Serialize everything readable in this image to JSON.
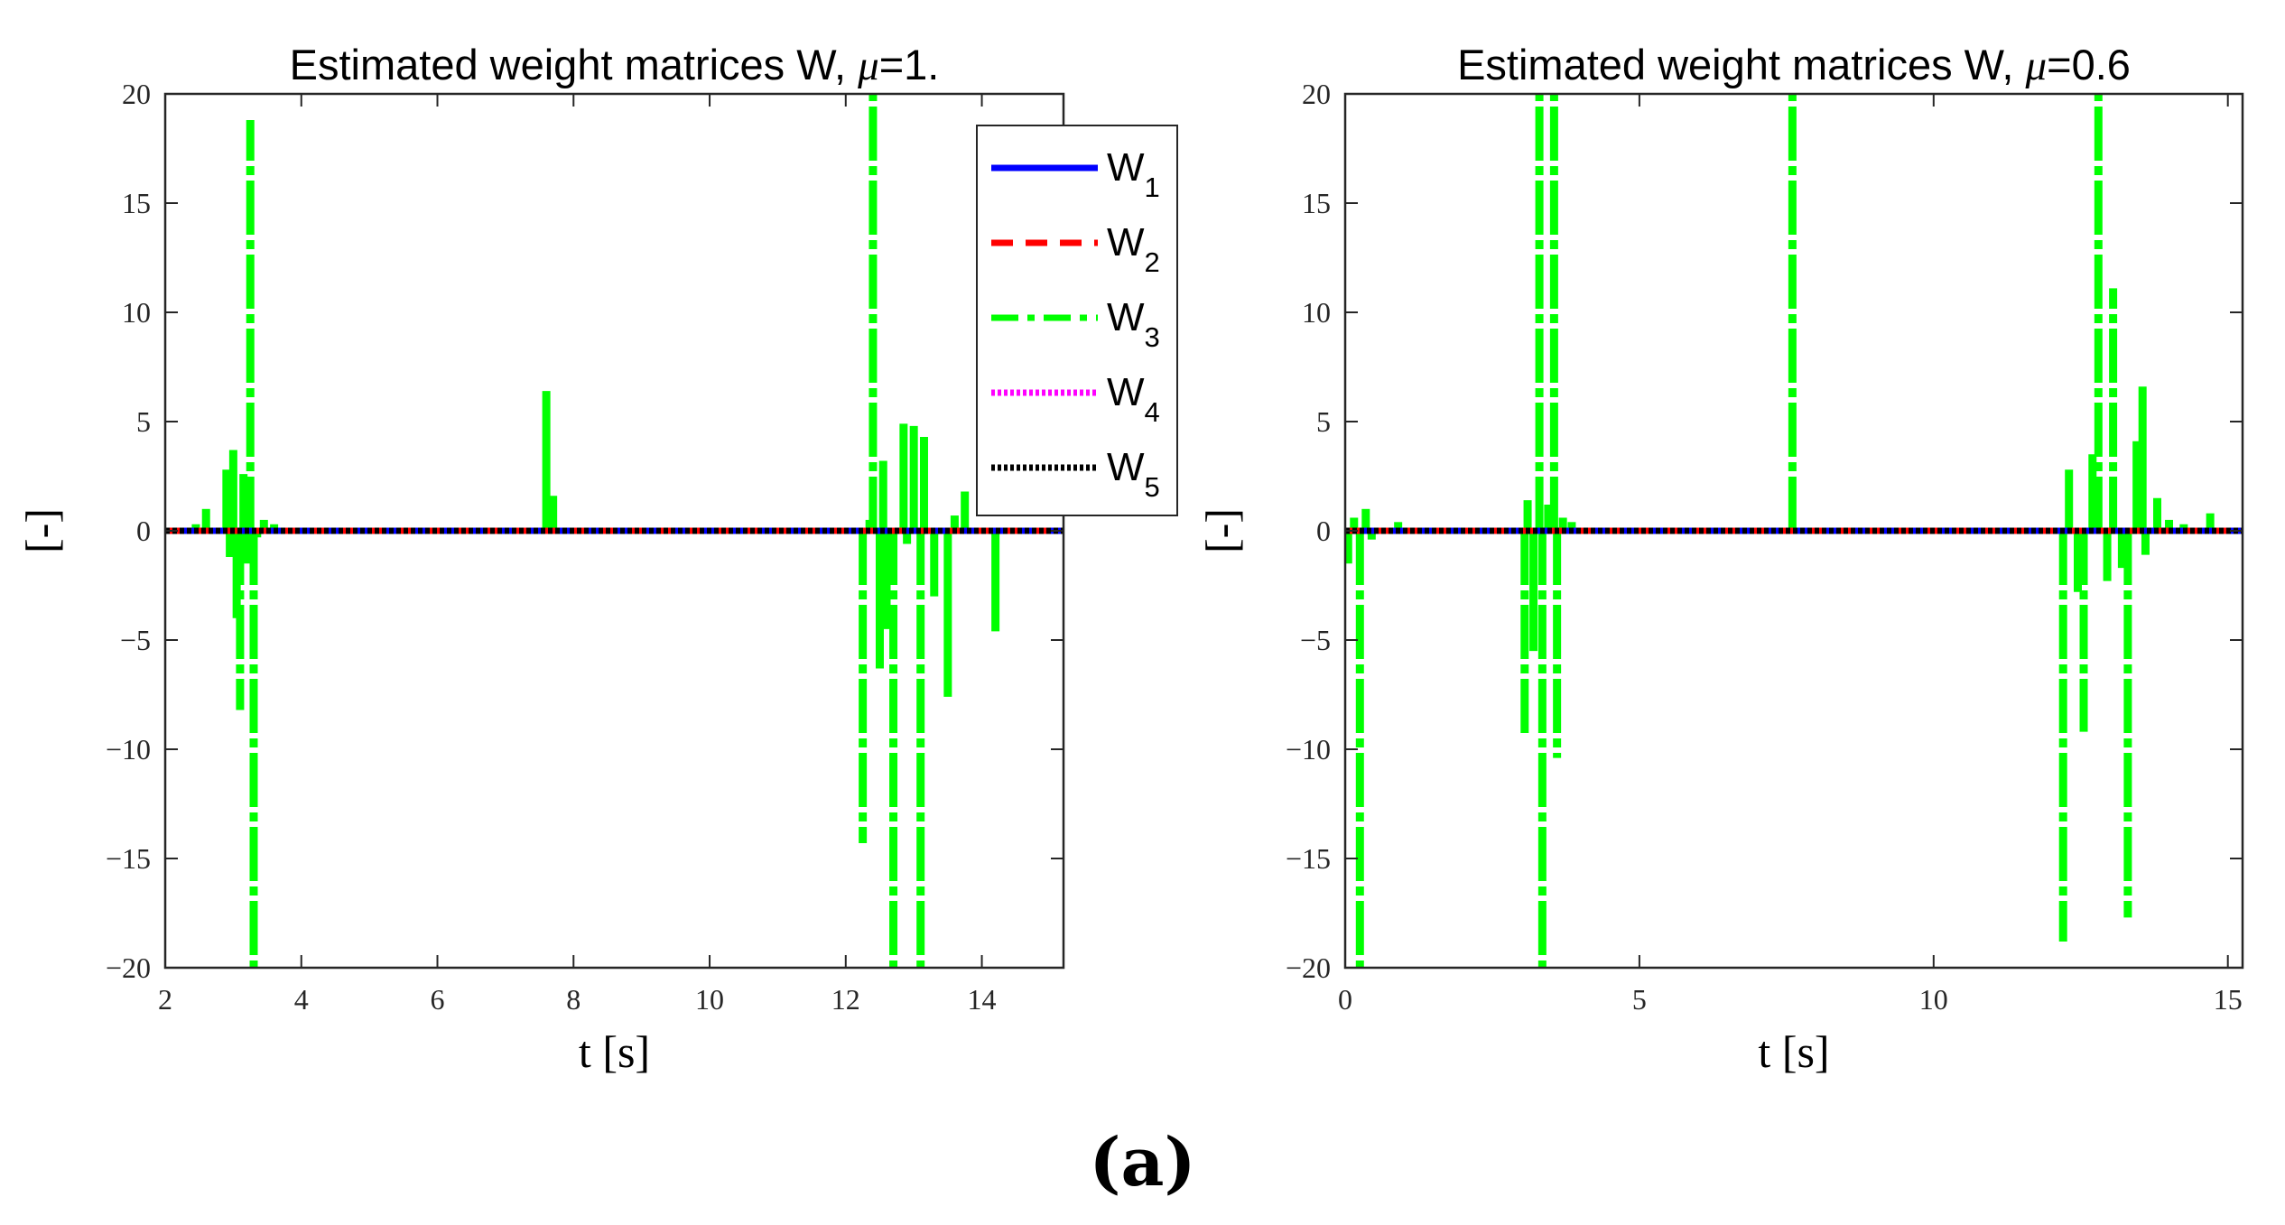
{
  "caption": "(a)",
  "colors": {
    "W1": "#0000ff",
    "W2": "#ff0000",
    "W3": "#00ff00",
    "W4": "#ff00ff",
    "W5": "#000000"
  },
  "chart_data": [
    {
      "type": "line",
      "title_prefix": "Estimated weight matrices W, ",
      "title_mu": "μ",
      "title_suffix": "=1.",
      "xlabel": "t [s]",
      "ylabel": "[-]",
      "xlim": [
        2,
        15.2
      ],
      "ylim": [
        -20,
        20
      ],
      "xticks": [
        2,
        4,
        6,
        8,
        10,
        12,
        14
      ],
      "xtick_labels": [
        "2",
        "4",
        "6",
        "8",
        "10",
        "12",
        "14"
      ],
      "yticks": [
        -20,
        -15,
        -10,
        -5,
        0,
        5,
        10,
        15,
        20
      ],
      "ytick_labels": [
        "−20",
        "−15",
        "−10",
        "−5",
        "0",
        "5",
        "10",
        "15",
        "20"
      ],
      "legend": {
        "placement": "top-right",
        "entries": [
          {
            "name": "W",
            "sub": "1",
            "style": "solid",
            "color_key": "W1"
          },
          {
            "name": "W",
            "sub": "2",
            "style": "dashed",
            "color_key": "W2"
          },
          {
            "name": "W",
            "sub": "3",
            "style": "dashdot",
            "color_key": "W3"
          },
          {
            "name": "W",
            "sub": "4",
            "style": "dotted",
            "color_key": "W4"
          },
          {
            "name": "W",
            "sub": "5",
            "style": "dotted",
            "color_key": "W5"
          }
        ]
      },
      "series": [
        {
          "name": "W3",
          "style": "dashdot",
          "spikes": [
            [
              2.45,
              0.3
            ],
            [
              2.6,
              1.0
            ],
            [
              2.9,
              2.8
            ],
            [
              2.95,
              -1.2
            ],
            [
              3.0,
              3.7
            ],
            [
              3.05,
              -4.0
            ],
            [
              3.1,
              -8.2
            ],
            [
              3.15,
              2.6
            ],
            [
              3.2,
              -1.5
            ],
            [
              3.25,
              18.8
            ],
            [
              3.3,
              -20.0
            ],
            [
              3.35,
              -0.3
            ],
            [
              3.45,
              0.5
            ],
            [
              3.6,
              0.3
            ],
            [
              7.6,
              6.4
            ],
            [
              7.7,
              1.6
            ],
            [
              12.25,
              -14.3
            ],
            [
              12.35,
              0.5
            ],
            [
              12.4,
              20.0
            ],
            [
              12.5,
              -6.3
            ],
            [
              12.55,
              3.2
            ],
            [
              12.6,
              -4.5
            ],
            [
              12.7,
              -20.0
            ],
            [
              12.85,
              4.9
            ],
            [
              12.9,
              -0.6
            ],
            [
              13.0,
              4.8
            ],
            [
              13.1,
              -20.0
            ],
            [
              13.15,
              4.3
            ],
            [
              13.3,
              -3.0
            ],
            [
              13.5,
              -7.6
            ],
            [
              13.6,
              0.7
            ],
            [
              13.75,
              1.8
            ],
            [
              14.2,
              -4.6
            ]
          ]
        },
        {
          "name": "W1",
          "style": "solid",
          "spikes": [
            [
              0,
              0
            ]
          ]
        },
        {
          "name": "W2",
          "style": "dashed",
          "spikes": [
            [
              0,
              0
            ]
          ]
        },
        {
          "name": "W4",
          "style": "dotted",
          "spikes": [
            [
              0,
              0
            ]
          ]
        },
        {
          "name": "W5",
          "style": "dotted",
          "spikes": [
            [
              0,
              0
            ]
          ]
        }
      ]
    },
    {
      "type": "line",
      "title_prefix": "Estimated weight matrices W, ",
      "title_mu": "μ",
      "title_suffix": "=0.6",
      "xlabel": "t [s]",
      "ylabel": "[-]",
      "xlim": [
        0,
        15.25
      ],
      "ylim": [
        -20,
        20
      ],
      "xticks": [
        0,
        5,
        10,
        15
      ],
      "xtick_labels": [
        "0",
        "5",
        "10",
        "15"
      ],
      "yticks": [
        -20,
        -15,
        -10,
        -5,
        0,
        5,
        10,
        15,
        20
      ],
      "ytick_labels": [
        "−20",
        "−15",
        "−10",
        "−5",
        "0",
        "5",
        "10",
        "15",
        "20"
      ],
      "legend": null,
      "series": [
        {
          "name": "W3",
          "style": "dashdot",
          "spikes": [
            [
              0.05,
              -1.5
            ],
            [
              0.15,
              0.6
            ],
            [
              0.25,
              -20.0
            ],
            [
              0.35,
              1.0
            ],
            [
              0.45,
              -0.4
            ],
            [
              0.9,
              0.4
            ],
            [
              3.05,
              -9.4
            ],
            [
              3.1,
              1.4
            ],
            [
              3.2,
              -5.5
            ],
            [
              3.3,
              20.0
            ],
            [
              3.35,
              -20.0
            ],
            [
              3.45,
              1.2
            ],
            [
              3.55,
              20.0
            ],
            [
              3.6,
              -10.4
            ],
            [
              3.7,
              0.6
            ],
            [
              3.85,
              0.4
            ],
            [
              7.6,
              20.0
            ],
            [
              12.2,
              -18.8
            ],
            [
              12.3,
              2.8
            ],
            [
              12.45,
              -2.8
            ],
            [
              12.55,
              -9.2
            ],
            [
              12.7,
              3.5
            ],
            [
              12.8,
              20.0
            ],
            [
              12.95,
              -2.3
            ],
            [
              13.05,
              11.1
            ],
            [
              13.2,
              -1.7
            ],
            [
              13.3,
              -17.7
            ],
            [
              13.45,
              4.1
            ],
            [
              13.55,
              6.6
            ],
            [
              13.6,
              -1.1
            ],
            [
              13.8,
              1.5
            ],
            [
              14.0,
              0.5
            ],
            [
              14.25,
              0.3
            ],
            [
              14.7,
              0.8
            ]
          ]
        },
        {
          "name": "W1",
          "style": "solid",
          "spikes": [
            [
              0,
              0
            ]
          ]
        },
        {
          "name": "W2",
          "style": "dashed",
          "spikes": [
            [
              0,
              0
            ]
          ]
        },
        {
          "name": "W4",
          "style": "dotted",
          "spikes": [
            [
              0,
              0
            ]
          ]
        },
        {
          "name": "W5",
          "style": "dotted",
          "spikes": [
            [
              0,
              0
            ]
          ]
        }
      ]
    }
  ]
}
